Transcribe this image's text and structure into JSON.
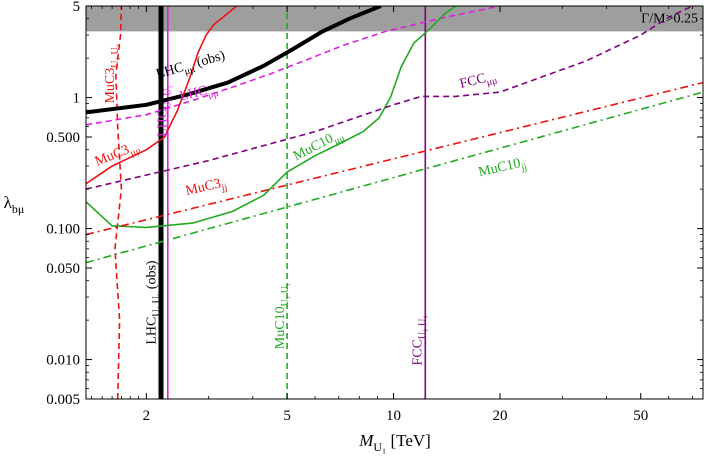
{
  "chart_data": {
    "type": "line",
    "title": "",
    "xlabel": "M_{U_1} [TeV]",
    "ylabel": "λ_{bμ}",
    "xscale": "log",
    "yscale": "log",
    "xlim": [
      1.35,
      75
    ],
    "ylim": [
      0.005,
      5
    ],
    "grid": false,
    "legend": "none",
    "xticks": [
      {
        "value": 2,
        "label": "2"
      },
      {
        "value": 5,
        "label": "5"
      },
      {
        "value": 10,
        "label": "10"
      },
      {
        "value": 20,
        "label": "20"
      },
      {
        "value": 50,
        "label": "50"
      }
    ],
    "yticks": [
      {
        "value": 0.005,
        "label": "0.005"
      },
      {
        "value": 0.01,
        "label": "0.010"
      },
      {
        "value": 0.05,
        "label": "0.050"
      },
      {
        "value": 0.1,
        "label": "0.100"
      },
      {
        "value": 0.5,
        "label": "0.500"
      },
      {
        "value": 1,
        "label": "1"
      },
      {
        "value": 5,
        "label": "5"
      }
    ],
    "shaded_region": {
      "label": "Γ/M>0.25",
      "y_from": 3.2,
      "y_to": 5,
      "color": "#999999"
    },
    "series": [
      {
        "key": "lhc_uu_obs",
        "color": "#000000",
        "style": "solid",
        "width": 5,
        "x": [
          2.2,
          2.2
        ],
        "y": [
          0.005,
          5
        ]
      },
      {
        "key": "lhc_uu_exp",
        "color": "#e020e0",
        "style": "solid",
        "width": 1.6,
        "x": [
          2.3,
          2.3
        ],
        "y": [
          0.005,
          5
        ]
      },
      {
        "key": "fcc_uu",
        "color": "#800080",
        "style": "solid",
        "width": 1.6,
        "x": [
          12.3,
          12.3
        ],
        "y": [
          0.005,
          5
        ]
      },
      {
        "key": "muc10_uu",
        "color": "#22aa22",
        "style": "dashed",
        "width": 1.6,
        "x": [
          5.0,
          5.0
        ],
        "y": [
          0.005,
          5
        ]
      },
      {
        "key": "muc3_uu",
        "color": "#ee1111",
        "style": "dashed",
        "width": 1.6,
        "x": [
          1.66,
          1.68,
          1.63,
          1.7,
          1.66,
          1.64,
          1.69,
          1.7
        ],
        "y": [
          0.005,
          0.02,
          0.07,
          0.2,
          0.6,
          1.5,
          3.0,
          5.0
        ]
      },
      {
        "key": "lhc_mumu_obs",
        "color": "#000000",
        "style": "solid",
        "width": 4,
        "x": [
          1.35,
          2.0,
          2.6,
          3.4,
          4.3,
          5.2,
          6.3,
          7.5,
          9.2
        ],
        "y": [
          0.77,
          0.88,
          1.05,
          1.3,
          1.75,
          2.35,
          3.2,
          4.0,
          5.0
        ]
      },
      {
        "key": "lhc_mumu_exp",
        "color": "#e020e0",
        "style": "dashed",
        "width": 1.6,
        "x": [
          1.35,
          2.0,
          2.7,
          3.5,
          4.5,
          5.7,
          7.2,
          9.5,
          14.0,
          20.0
        ],
        "y": [
          0.62,
          0.74,
          0.95,
          1.2,
          1.52,
          1.95,
          2.5,
          3.2,
          4.1,
          5.0
        ]
      },
      {
        "key": "muc3_mumu",
        "color": "#ee1111",
        "style": "solid",
        "width": 1.6,
        "x": [
          1.35,
          1.6,
          2.0,
          2.25,
          2.45,
          2.65,
          2.8,
          2.95,
          3.1,
          3.4,
          3.6
        ],
        "y": [
          0.22,
          0.3,
          0.4,
          0.5,
          0.8,
          1.4,
          2.2,
          3.0,
          3.6,
          4.4,
          5.0
        ]
      },
      {
        "key": "muc10_mumu",
        "color": "#22aa22",
        "style": "solid",
        "width": 1.6,
        "x": [
          1.35,
          1.6,
          2.0,
          2.7,
          3.5,
          4.3,
          5.0,
          6.0,
          7.1,
          8.2,
          9.1,
          9.8,
          10.5,
          11.4,
          12.6,
          14.0,
          15.0
        ],
        "y": [
          0.16,
          0.105,
          0.102,
          0.11,
          0.135,
          0.18,
          0.27,
          0.36,
          0.45,
          0.55,
          0.7,
          1.0,
          1.7,
          2.6,
          3.3,
          4.4,
          5.0
        ]
      },
      {
        "key": "fcc_mumu",
        "color": "#800080",
        "style": "dashed",
        "width": 1.6,
        "x": [
          1.35,
          3.0,
          6.0,
          10.0,
          12.0,
          15.0,
          20.0,
          35.0,
          50.0,
          60.0,
          70.0
        ],
        "y": [
          0.2,
          0.33,
          0.55,
          0.88,
          1.02,
          1.02,
          1.1,
          1.9,
          3.0,
          4.1,
          5.0
        ]
      },
      {
        "key": "muc3_jj",
        "color": "#ee1111",
        "style": "dashdot",
        "width": 1.6,
        "x": [
          1.35,
          75.0
        ],
        "y": [
          0.09,
          1.3
        ]
      },
      {
        "key": "muc10_jj",
        "color": "#22aa22",
        "style": "dashdot",
        "width": 1.6,
        "x": [
          1.35,
          75.0
        ],
        "y": [
          0.055,
          1.1
        ]
      }
    ],
    "annotations": [
      {
        "key": "lhc_mumu_obs",
        "main": "LHC",
        "sub": "μμ",
        "suffix": " (obs)",
        "color": "#000000",
        "x": 2.15,
        "y": 1.4,
        "angle": -16
      },
      {
        "key": "lhc_mumu_exp",
        "main": "LHC",
        "sub": "μμ",
        "suffix": "",
        "color": "#e020e0",
        "x": 2.5,
        "y": 0.95,
        "angle": -13
      },
      {
        "key": "lhc_uu_obs",
        "main": "LHC",
        "sub": "U₁ U₁",
        "suffix": " (obs)",
        "color": "#000000",
        "x": 2.12,
        "y": 0.013,
        "angle": -90
      },
      {
        "key": "lhc_uu_exp",
        "main": "LHC",
        "sub": "U₁ U₁",
        "suffix": "",
        "color": "#e020e0",
        "x": 2.28,
        "y": 0.5,
        "angle": -90
      },
      {
        "key": "muc3_uu",
        "main": "MuC3",
        "sub": "U₁ U₁",
        "suffix": "",
        "color": "#ee1111",
        "x": 1.62,
        "y": 0.9,
        "angle": -90
      },
      {
        "key": "muc3_mumu",
        "main": "MuC3",
        "sub": "μμ",
        "suffix": "",
        "color": "#ee1111",
        "x": 1.45,
        "y": 0.3,
        "angle": -22
      },
      {
        "key": "muc3_jj",
        "main": "MuC3",
        "sub": "jj",
        "suffix": "",
        "color": "#ee1111",
        "x": 2.6,
        "y": 0.18,
        "angle": -13
      },
      {
        "key": "muc10_uu",
        "main": "MuC10",
        "sub": "U₁ U₁",
        "suffix": "",
        "color": "#22aa22",
        "x": 4.9,
        "y": 0.012,
        "angle": -90
      },
      {
        "key": "muc10_mumu",
        "main": "MuC10",
        "sub": "μμ",
        "suffix": "",
        "color": "#22aa22",
        "x": 5.3,
        "y": 0.33,
        "angle": -27
      },
      {
        "key": "muc10_jj",
        "main": "MuC10",
        "sub": "jj",
        "suffix": "",
        "color": "#22aa22",
        "x": 17.5,
        "y": 0.25,
        "angle": -13
      },
      {
        "key": "fcc_uu",
        "main": "FCC",
        "sub": "U₁ U₁",
        "suffix": "",
        "color": "#800080",
        "x": 12.0,
        "y": 0.009,
        "angle": -90
      },
      {
        "key": "fcc_mumu",
        "main": "FCC",
        "sub": "μμ",
        "suffix": "",
        "color": "#800080",
        "x": 15.5,
        "y": 1.18,
        "angle": -14
      }
    ]
  }
}
